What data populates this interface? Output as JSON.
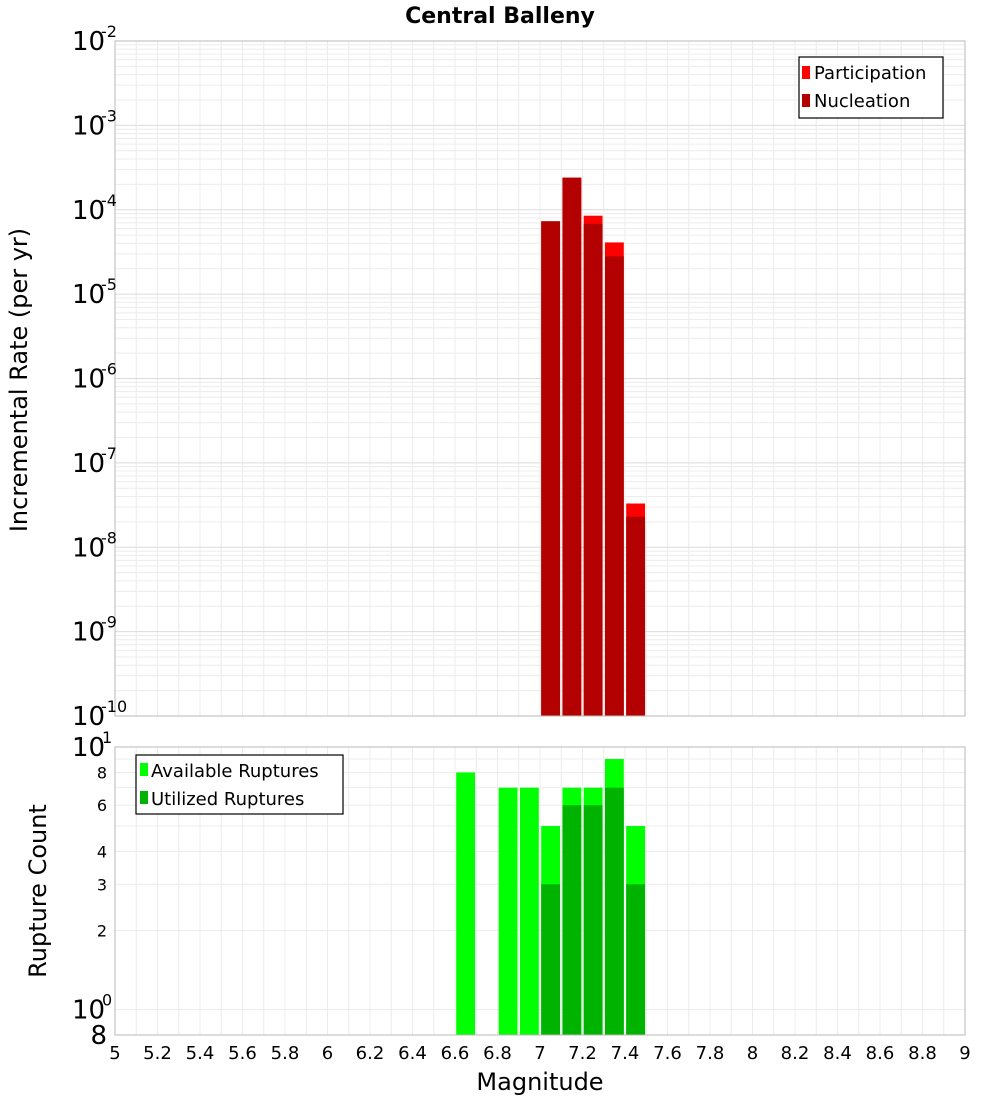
{
  "chart_data": [
    {
      "type": "bar",
      "title": "Central Balleny",
      "xlabel": "",
      "ylabel": "Incremental Rate (per yr)",
      "y_scale": "log",
      "ylim": [
        1e-10,
        0.01
      ],
      "xlim": [
        5,
        9
      ],
      "bin_width": 0.1,
      "grid": true,
      "legend_position": "top-right",
      "y_ticks": [
        {
          "base": "10",
          "exp": "-2"
        },
        {
          "base": "10",
          "exp": "-3"
        },
        {
          "base": "10",
          "exp": "-4"
        },
        {
          "base": "10",
          "exp": "-5"
        },
        {
          "base": "10",
          "exp": "-6"
        },
        {
          "base": "10",
          "exp": "-7"
        },
        {
          "base": "10",
          "exp": "-8"
        },
        {
          "base": "10",
          "exp": "-9"
        },
        {
          "base": "10",
          "exp": "-10"
        }
      ],
      "series": [
        {
          "name": "Participation",
          "color": "#ff0000",
          "x": [
            7.05,
            7.15,
            7.25,
            7.35,
            7.45
          ],
          "values": [
            7.3e-05,
            0.00024,
            8.5e-05,
            4.1e-05,
            3.3e-08
          ]
        },
        {
          "name": "Nucleation",
          "color": "#b30000",
          "x": [
            7.05,
            7.15,
            7.25,
            7.35,
            7.45
          ],
          "values": [
            7.3e-05,
            0.00024,
            6.8e-05,
            2.8e-05,
            2.3e-08
          ]
        }
      ]
    },
    {
      "type": "bar",
      "title": "",
      "xlabel": "Magnitude",
      "ylabel": "Rupture Count",
      "y_scale": "log",
      "ylim": [
        0.8,
        10
      ],
      "xlim": [
        5,
        9
      ],
      "bin_width": 0.1,
      "grid": true,
      "legend_position": "top-left",
      "x_ticks": [
        "5",
        "5.2",
        "5.4",
        "5.6",
        "5.8",
        "6",
        "6.2",
        "6.4",
        "6.6",
        "6.8",
        "7",
        "7.2",
        "7.4",
        "7.6",
        "7.8",
        "8",
        "8.2",
        "8.4",
        "8.6",
        "8.8",
        "9"
      ],
      "y_ticks_minor": [
        "8",
        "6",
        "4",
        "3",
        "2"
      ],
      "y_ticks_major": [
        {
          "base": "10",
          "exp": "1"
        },
        {
          "base": "10",
          "exp": "0"
        }
      ],
      "y_bottom_label": "8",
      "series": [
        {
          "name": "Available Ruptures",
          "color": "#00ff00",
          "x": [
            6.65,
            6.85,
            6.95,
            7.05,
            7.15,
            7.25,
            7.35,
            7.45
          ],
          "values": [
            8,
            7,
            7,
            5,
            7,
            7,
            9,
            5
          ]
        },
        {
          "name": "Utilized Ruptures",
          "color": "#00b300",
          "x": [
            7.05,
            7.15,
            7.25,
            7.35,
            7.45
          ],
          "values": [
            3,
            6,
            6,
            7,
            3
          ]
        }
      ]
    }
  ]
}
